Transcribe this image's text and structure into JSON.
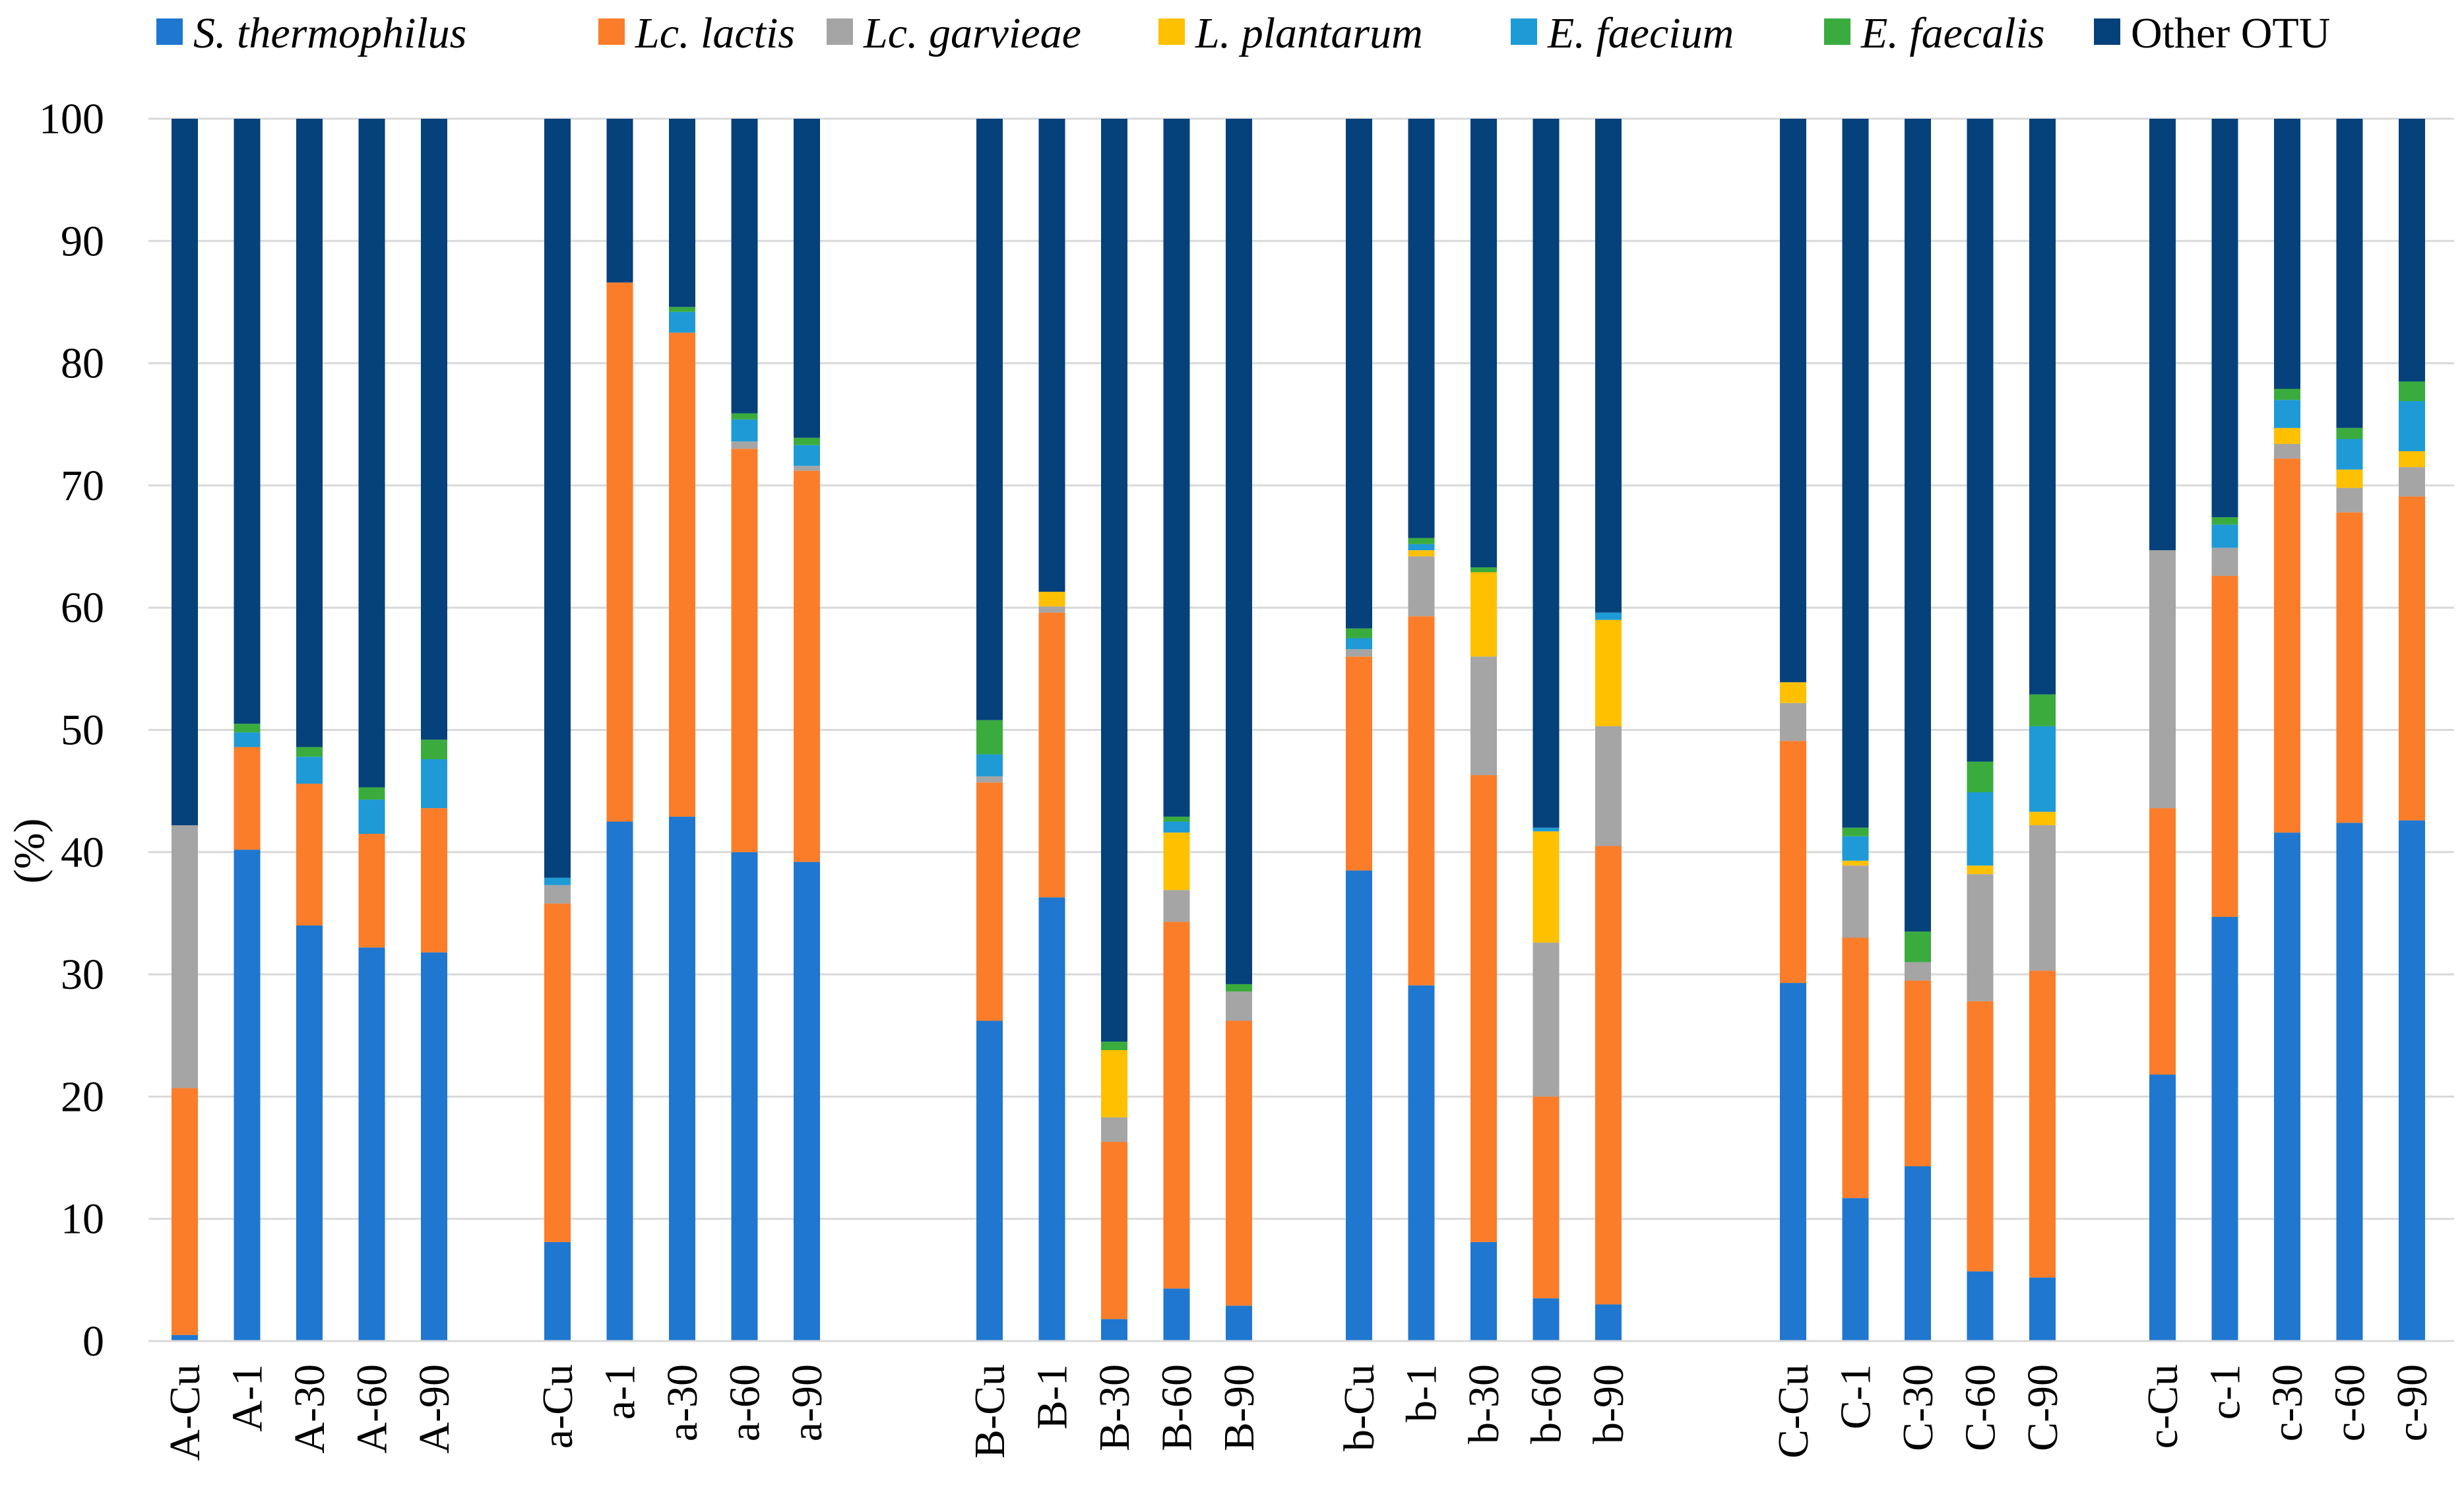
{
  "chart_data": {
    "type": "bar",
    "stacked": true,
    "title": "",
    "xlabel": "",
    "ylabel": "(%)",
    "ylim": [
      0,
      100
    ],
    "yticks": [
      0,
      10,
      20,
      30,
      40,
      50,
      60,
      70,
      80,
      90,
      100
    ],
    "grid": true,
    "legend_position": "top",
    "groups": [
      [
        "A-Cu",
        "A-1",
        "A-30",
        "A-60",
        "A-90"
      ],
      [
        "a-Cu",
        "a-1",
        "a-30",
        "a-60",
        "a-90"
      ],
      [
        "B-Cu",
        "B-1",
        "B-30",
        "B-60",
        "B-90"
      ],
      [
        "b-Cu",
        "b-1",
        "b-30",
        "b-60",
        "b-90"
      ],
      [
        "C-Cu",
        "C-1",
        "C-30",
        "C-60",
        "C-90"
      ],
      [
        "c-Cu",
        "c-1",
        "c-30",
        "c-60",
        "c-90"
      ]
    ],
    "categories": [
      "A-Cu",
      "A-1",
      "A-30",
      "A-60",
      "A-90",
      "a-Cu",
      "a-1",
      "a-30",
      "a-60",
      "a-90",
      "B-Cu",
      "B-1",
      "B-30",
      "B-60",
      "B-90",
      "b-Cu",
      "b-1",
      "b-30",
      "b-60",
      "b-90",
      "C-Cu",
      "C-1",
      "C-30",
      "C-60",
      "C-90",
      "c-Cu",
      "c-1",
      "c-30",
      "c-60",
      "c-90"
    ],
    "series": [
      {
        "name": "S. thermophilus",
        "italic": true,
        "color": "#1f77d0",
        "values": [
          0.5,
          40.2,
          34.0,
          32.2,
          31.8,
          8.1,
          42.5,
          42.9,
          40.0,
          39.2,
          26.2,
          36.3,
          1.8,
          4.3,
          2.9,
          38.5,
          29.1,
          8.1,
          3.5,
          3.0,
          29.3,
          11.7,
          14.3,
          5.7,
          5.2,
          21.8,
          34.7,
          41.6,
          42.4,
          42.6
        ]
      },
      {
        "name": "Lc. lactis",
        "italic": true,
        "color": "#fb7d2a",
        "values": [
          20.2,
          8.4,
          11.6,
          9.3,
          11.8,
          27.7,
          44.1,
          39.6,
          33.0,
          32.0,
          19.5,
          23.3,
          14.5,
          30.0,
          23.3,
          17.5,
          30.2,
          38.2,
          16.5,
          37.5,
          19.8,
          21.3,
          15.2,
          22.1,
          25.1,
          21.8,
          27.9,
          30.6,
          25.4,
          26.5
        ]
      },
      {
        "name": "Lc. garvieae",
        "italic": true,
        "color": "#a5a5a5",
        "values": [
          21.5,
          0.0,
          0.0,
          0.0,
          0.0,
          1.5,
          0.0,
          0.0,
          0.6,
          0.4,
          0.5,
          0.5,
          2.0,
          2.6,
          2.4,
          0.6,
          4.9,
          9.7,
          12.6,
          9.8,
          3.1,
          5.9,
          1.5,
          10.4,
          11.9,
          21.1,
          2.3,
          1.2,
          2.0,
          2.4
        ]
      },
      {
        "name": "L. plantarum",
        "italic": true,
        "color": "#ffc000",
        "values": [
          0.0,
          0.0,
          0.0,
          0.0,
          0.0,
          0.0,
          0.0,
          0.0,
          0.0,
          0.0,
          0.0,
          1.2,
          5.5,
          4.7,
          0.0,
          0.0,
          0.5,
          6.9,
          9.1,
          8.7,
          1.7,
          0.4,
          0.0,
          0.7,
          1.1,
          0.0,
          0.0,
          1.3,
          1.5,
          1.3
        ]
      },
      {
        "name": "E. faecium",
        "italic": true,
        "color": "#1e9ad6",
        "values": [
          0.0,
          1.2,
          2.2,
          2.8,
          4.0,
          0.6,
          0.0,
          1.7,
          1.8,
          1.7,
          1.8,
          0.0,
          0.0,
          0.9,
          0.0,
          0.9,
          0.5,
          0.0,
          0.3,
          0.6,
          0.0,
          2.0,
          0.0,
          6.0,
          7.0,
          0.0,
          1.9,
          2.3,
          2.5,
          4.1
        ]
      },
      {
        "name": "E. faecalis",
        "italic": true,
        "color": "#3aac3e",
        "values": [
          0.0,
          0.7,
          0.8,
          1.0,
          1.6,
          0.0,
          0.0,
          0.4,
          0.5,
          0.6,
          2.8,
          0.0,
          0.7,
          0.4,
          0.6,
          0.8,
          0.5,
          0.4,
          0.0,
          0.0,
          0.0,
          0.7,
          2.5,
          2.5,
          2.6,
          0.0,
          0.6,
          0.9,
          0.9,
          1.6
        ]
      },
      {
        "name": "Other OTU",
        "italic": false,
        "color": "#05417b",
        "values": [
          57.8,
          49.5,
          51.4,
          54.7,
          50.8,
          62.1,
          13.4,
          15.4,
          24.1,
          26.1,
          49.2,
          38.7,
          75.5,
          57.1,
          70.8,
          41.7,
          34.3,
          36.7,
          58.0,
          40.4,
          46.1,
          58.0,
          66.5,
          52.6,
          47.1,
          35.3,
          32.6,
          22.1,
          25.3,
          21.5
        ]
      }
    ]
  }
}
